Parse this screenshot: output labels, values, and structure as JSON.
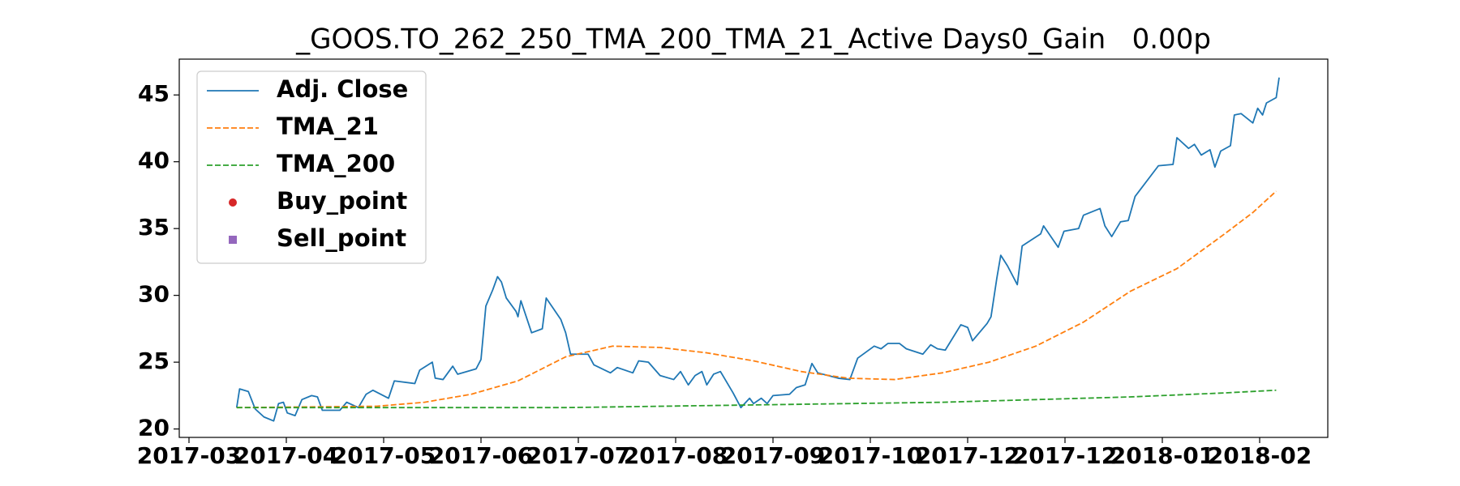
{
  "chart_data": {
    "type": "line",
    "title": "_GOOS.TO_262_250_TMA_200_TMA_21_Active Days0_Gain   0.00p",
    "xlim": [
      -0.1,
      11.7
    ],
    "ylim": [
      19.37,
      47.68
    ],
    "xticks": [
      {
        "value": 0,
        "label": "2017-03"
      },
      {
        "value": 1,
        "label": "2017-04"
      },
      {
        "value": 2,
        "label": "2017-05"
      },
      {
        "value": 3,
        "label": "2017-06"
      },
      {
        "value": 4,
        "label": "2017-07"
      },
      {
        "value": 5,
        "label": "2017-08"
      },
      {
        "value": 6,
        "label": "2017-09"
      },
      {
        "value": 7,
        "label": "2017-10"
      },
      {
        "value": 8,
        "label": "2017-12"
      },
      {
        "value": 9,
        "label": "2017-12"
      },
      {
        "value": 10,
        "label": "2018-01"
      },
      {
        "value": 11,
        "label": "2018-02"
      }
    ],
    "yticks": [
      20,
      25,
      30,
      35,
      40,
      45
    ],
    "grid": false,
    "legend": "upper left",
    "series": [
      {
        "name": "Adj. Close",
        "color": "#1f77b4",
        "style": "solid",
        "x": [
          0.49,
          0.52,
          0.61,
          0.68,
          0.77,
          0.87,
          0.92,
          0.97,
          1.01,
          1.09,
          1.16,
          1.26,
          1.32,
          1.37,
          1.55,
          1.62,
          1.74,
          1.82,
          1.89,
          2.05,
          2.11,
          2.32,
          2.37,
          2.5,
          2.53,
          2.61,
          2.71,
          2.76,
          2.95,
          3.0,
          3.05,
          3.12,
          3.17,
          3.21,
          3.26,
          3.36,
          3.38,
          3.41,
          3.52,
          3.63,
          3.67,
          3.82,
          3.87,
          3.92,
          4.1,
          4.16,
          4.33,
          4.4,
          4.56,
          4.62,
          4.72,
          4.84,
          4.98,
          5.05,
          5.13,
          5.2,
          5.27,
          5.32,
          5.39,
          5.46,
          5.59,
          5.67,
          5.76,
          5.8,
          5.88,
          5.94,
          6.0,
          6.17,
          6.24,
          6.33,
          6.4,
          6.46,
          6.67,
          6.79,
          6.87,
          7.04,
          7.11,
          7.18,
          7.3,
          7.37,
          7.54,
          7.62,
          7.69,
          7.77,
          7.93,
          8.0,
          8.05,
          8.2,
          8.24,
          8.3,
          8.34,
          8.41,
          8.51,
          8.56,
          8.75,
          8.78,
          8.93,
          8.99,
          9.14,
          9.19,
          9.36,
          9.41,
          9.48,
          9.57,
          9.65,
          9.72,
          9.96,
          10.11,
          10.15,
          10.27,
          10.33,
          10.4,
          10.49,
          10.54,
          10.6,
          10.7,
          10.74,
          10.81,
          10.93,
          10.98,
          11.03,
          11.07,
          11.17,
          11.2
        ],
        "values": [
          21.6,
          23.0,
          22.8,
          21.5,
          20.9,
          20.6,
          21.9,
          22.0,
          21.2,
          21.0,
          22.2,
          22.5,
          22.4,
          21.4,
          21.4,
          22.0,
          21.6,
          22.6,
          22.9,
          22.3,
          23.6,
          23.4,
          24.4,
          25.0,
          23.8,
          23.7,
          24.7,
          24.1,
          24.5,
          25.2,
          29.2,
          30.4,
          31.4,
          31.0,
          29.8,
          28.8,
          28.4,
          29.6,
          27.2,
          27.5,
          29.8,
          28.2,
          27.2,
          25.6,
          25.6,
          24.8,
          24.2,
          24.6,
          24.2,
          25.1,
          25.0,
          24.0,
          23.7,
          24.3,
          23.3,
          24.0,
          24.3,
          23.3,
          24.1,
          24.3,
          22.7,
          21.6,
          22.3,
          21.9,
          22.3,
          21.9,
          22.5,
          22.6,
          23.1,
          23.3,
          24.9,
          24.2,
          23.8,
          23.7,
          25.3,
          26.2,
          26.0,
          26.4,
          26.4,
          26.0,
          25.6,
          26.3,
          26.0,
          25.9,
          27.8,
          27.6,
          26.6,
          27.9,
          28.4,
          31.3,
          33.0,
          32.2,
          30.8,
          33.7,
          34.6,
          35.2,
          33.6,
          34.8,
          35.0,
          36.0,
          36.5,
          35.2,
          34.4,
          35.5,
          35.6,
          37.4,
          39.7,
          39.8,
          41.8,
          41.0,
          41.3,
          40.5,
          40.9,
          39.6,
          40.8,
          41.2,
          43.5,
          43.6,
          42.9,
          44.0,
          43.5,
          44.4,
          44.8,
          46.3
        ]
      },
      {
        "name": "TMA_21",
        "color": "#ff7f0e",
        "style": "dashed",
        "x": [
          0.49,
          1.93,
          2.42,
          2.9,
          3.38,
          3.87,
          4.35,
          4.84,
          5.32,
          5.8,
          6.29,
          6.77,
          7.25,
          7.74,
          8.22,
          8.7,
          9.19,
          9.67,
          10.15,
          10.64,
          10.93,
          11.17
        ],
        "values": [
          21.6,
          21.7,
          22.0,
          22.6,
          23.6,
          25.4,
          26.2,
          26.1,
          25.7,
          25.1,
          24.3,
          23.8,
          23.7,
          24.2,
          25.0,
          26.2,
          28.0,
          30.3,
          32.0,
          34.6,
          36.2,
          37.8
        ]
      },
      {
        "name": "TMA_200",
        "color": "#2ca02c",
        "style": "dashed",
        "x": [
          0.49,
          3.87,
          5.8,
          7.74,
          9.67,
          10.64,
          11.17
        ],
        "values": [
          21.6,
          21.6,
          21.8,
          22.0,
          22.4,
          22.7,
          22.9
        ]
      },
      {
        "name": "Buy_point",
        "color": "#d62728",
        "marker": "circle",
        "x": [],
        "values": []
      },
      {
        "name": "Sell_point",
        "color": "#9467bd",
        "marker": "square",
        "x": [],
        "values": []
      }
    ]
  }
}
